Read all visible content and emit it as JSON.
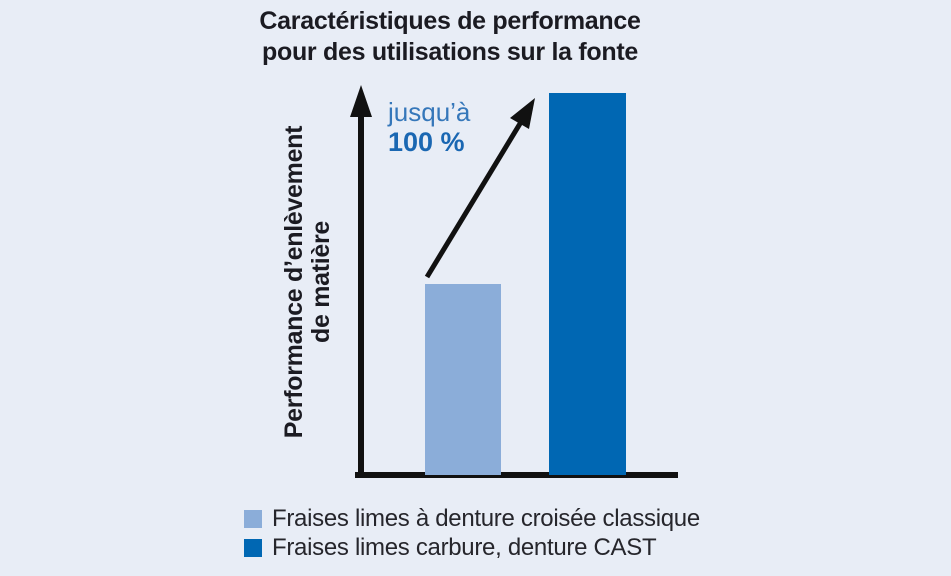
{
  "title": {
    "line1": "Caractéristiques de performance",
    "line2": "pour des utilisations sur la fonte"
  },
  "y_axis": {
    "label_line1": "Performance d’enlèvement",
    "label_line2": "de matière"
  },
  "annotation": {
    "line1": "jusqu’à",
    "line2": "100 %"
  },
  "legend": {
    "items": [
      {
        "label": "Fraises limes à denture croisée classique"
      },
      {
        "label": "Fraises limes carbure, denture CAST"
      }
    ]
  },
  "colors": {
    "background": "#e8edf6",
    "axis": "#111111",
    "title_text": "#1b1b22",
    "legend_text": "#26262c",
    "annotation_regular": "#3577ba",
    "annotation_bold": "#1a67b2"
  },
  "chart_data": {
    "type": "bar",
    "title": "Caractéristiques de performance pour des utilisations sur la fonte",
    "ylabel": "Performance d’enlèvement de matière",
    "xlabel": "",
    "categories": [
      "Fraises limes à denture croisée classique",
      "Fraises limes carbure, denture CAST"
    ],
    "values": [
      50,
      100
    ],
    "ylim": [
      0,
      100
    ],
    "colors": [
      "#8badd9",
      "#0067b3"
    ],
    "annotation": "jusqu’à 100 %",
    "legend_position": "bottom",
    "grid": false,
    "axis_ticks": "none"
  }
}
